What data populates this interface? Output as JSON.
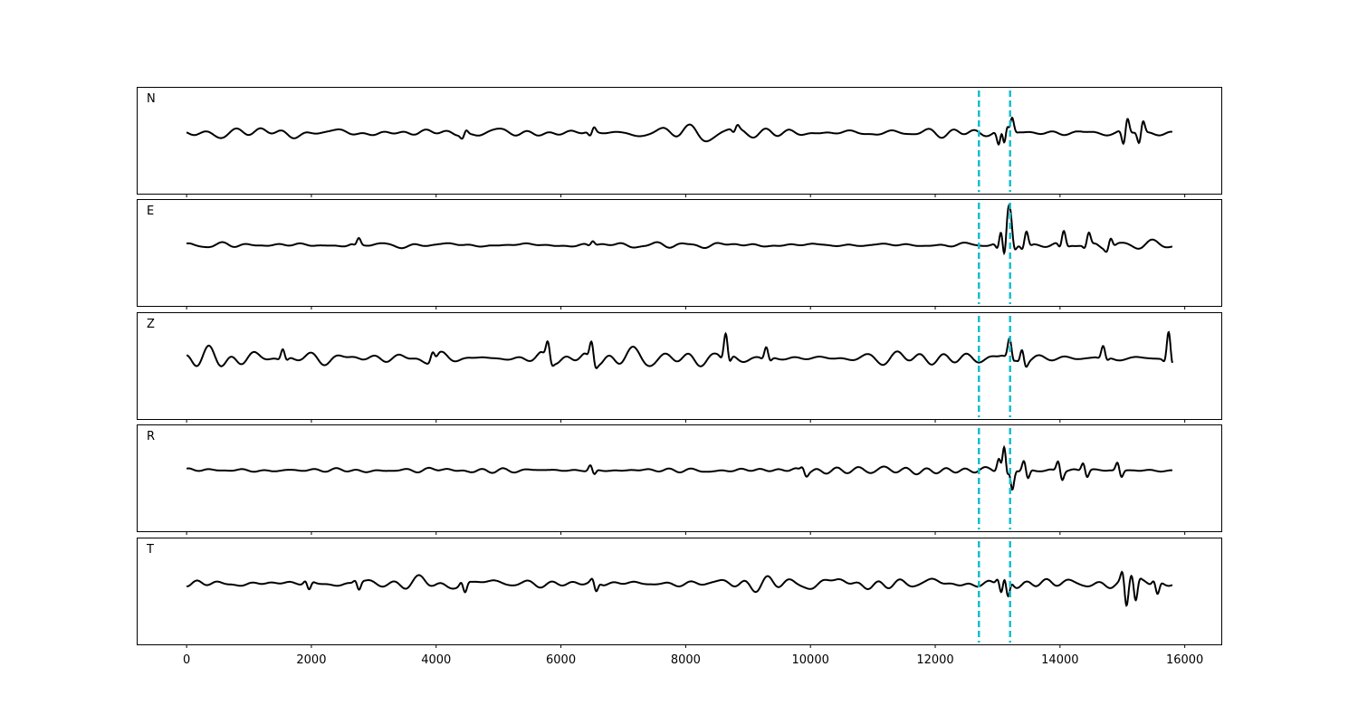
{
  "chart_data": {
    "type": "line",
    "panels": [
      "N",
      "E",
      "Z",
      "R",
      "T"
    ],
    "xlim": [
      -800,
      16600
    ],
    "xticks": [
      0,
      2000,
      4000,
      6000,
      8000,
      10000,
      12000,
      14000,
      16000
    ],
    "xtick_labels": [
      "0",
      "2000",
      "4000",
      "6000",
      "8000",
      "10000",
      "12000",
      "14000",
      "16000"
    ],
    "sample_range": [
      0,
      15800
    ],
    "markers": [
      12700,
      13200
    ],
    "marker_color": "#17becf",
    "line_color": "#000000",
    "series": [
      {
        "events": [
          [
            4450,
            6
          ],
          [
            6500,
            7
          ],
          [
            8800,
            6
          ],
          [
            13050,
            22
          ],
          [
            13130,
            35
          ],
          [
            13200,
            25
          ],
          [
            15050,
            22
          ],
          [
            15300,
            18
          ]
        ]
      },
      {
        "events": [
          [
            2750,
            6
          ],
          [
            6500,
            4
          ],
          [
            13050,
            18
          ],
          [
            13150,
            45
          ],
          [
            13200,
            35
          ],
          [
            13450,
            15
          ],
          [
            14050,
            15
          ],
          [
            14450,
            12
          ],
          [
            14800,
            10
          ]
        ]
      },
      {
        "events": [
          [
            1550,
            10
          ],
          [
            3950,
            8
          ],
          [
            5800,
            16
          ],
          [
            6500,
            18
          ],
          [
            8650,
            25
          ],
          [
            9300,
            12
          ],
          [
            13200,
            18
          ],
          [
            13400,
            15
          ],
          [
            14700,
            12
          ],
          [
            15750,
            30
          ]
        ]
      },
      {
        "events": [
          [
            6500,
            8
          ],
          [
            9900,
            6
          ],
          [
            13050,
            20
          ],
          [
            13130,
            50
          ],
          [
            13200,
            35
          ],
          [
            13450,
            15
          ],
          [
            14000,
            15
          ],
          [
            14400,
            12
          ],
          [
            14950,
            12
          ]
        ]
      },
      {
        "events": [
          [
            1950,
            8
          ],
          [
            2750,
            8
          ],
          [
            4450,
            10
          ],
          [
            6550,
            10
          ],
          [
            13050,
            14
          ],
          [
            13150,
            18
          ],
          [
            15050,
            28
          ],
          [
            15200,
            22
          ],
          [
            15550,
            12
          ]
        ]
      }
    ]
  }
}
